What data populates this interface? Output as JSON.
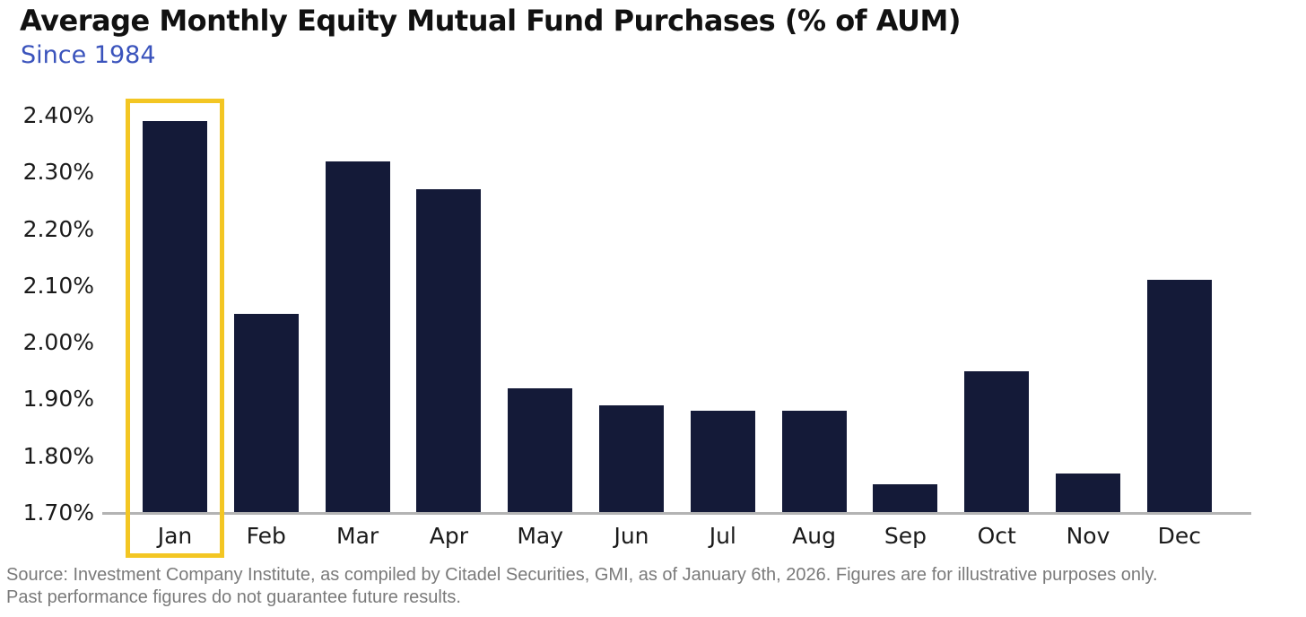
{
  "chart_data": {
    "type": "bar",
    "title": "Average Monthly Equity Mutual Fund Purchases (% of AUM)",
    "subtitle": "Since 1984",
    "categories": [
      "Jan",
      "Feb",
      "Mar",
      "Apr",
      "May",
      "Jun",
      "Jul",
      "Aug",
      "Sep",
      "Oct",
      "Nov",
      "Dec"
    ],
    "values": [
      2.39,
      2.05,
      2.32,
      2.27,
      1.92,
      1.89,
      1.88,
      1.88,
      1.75,
      1.95,
      1.77,
      2.11
    ],
    "unit": "%",
    "xlabel": "",
    "ylabel": "",
    "ylim": [
      1.7,
      2.4
    ],
    "ytick_labels": [
      "2.40%",
      "2.30%",
      "2.20%",
      "2.10%",
      "2.00%",
      "1.90%",
      "1.80%",
      "1.70%"
    ],
    "grid": false,
    "legend": "none",
    "highlight": {
      "category": "Jan",
      "style": "gold-outline-box"
    }
  },
  "colors": {
    "bar": "#141a38",
    "highlight_box": "#f3c623",
    "title": "#111111",
    "subtitle": "#3a53bc",
    "axis_line": "#b3b3b3",
    "tick_label": "#1a1a1a",
    "source_text": "#7a7a7a",
    "background": "#ffffff"
  },
  "footer": {
    "source_line1": "Source: Investment Company Institute, as compiled by Citadel Securities, GMI, as of January 6th, 2026. Figures are for illustrative purposes only.",
    "source_line2": "Past performance figures do not guarantee future results."
  }
}
